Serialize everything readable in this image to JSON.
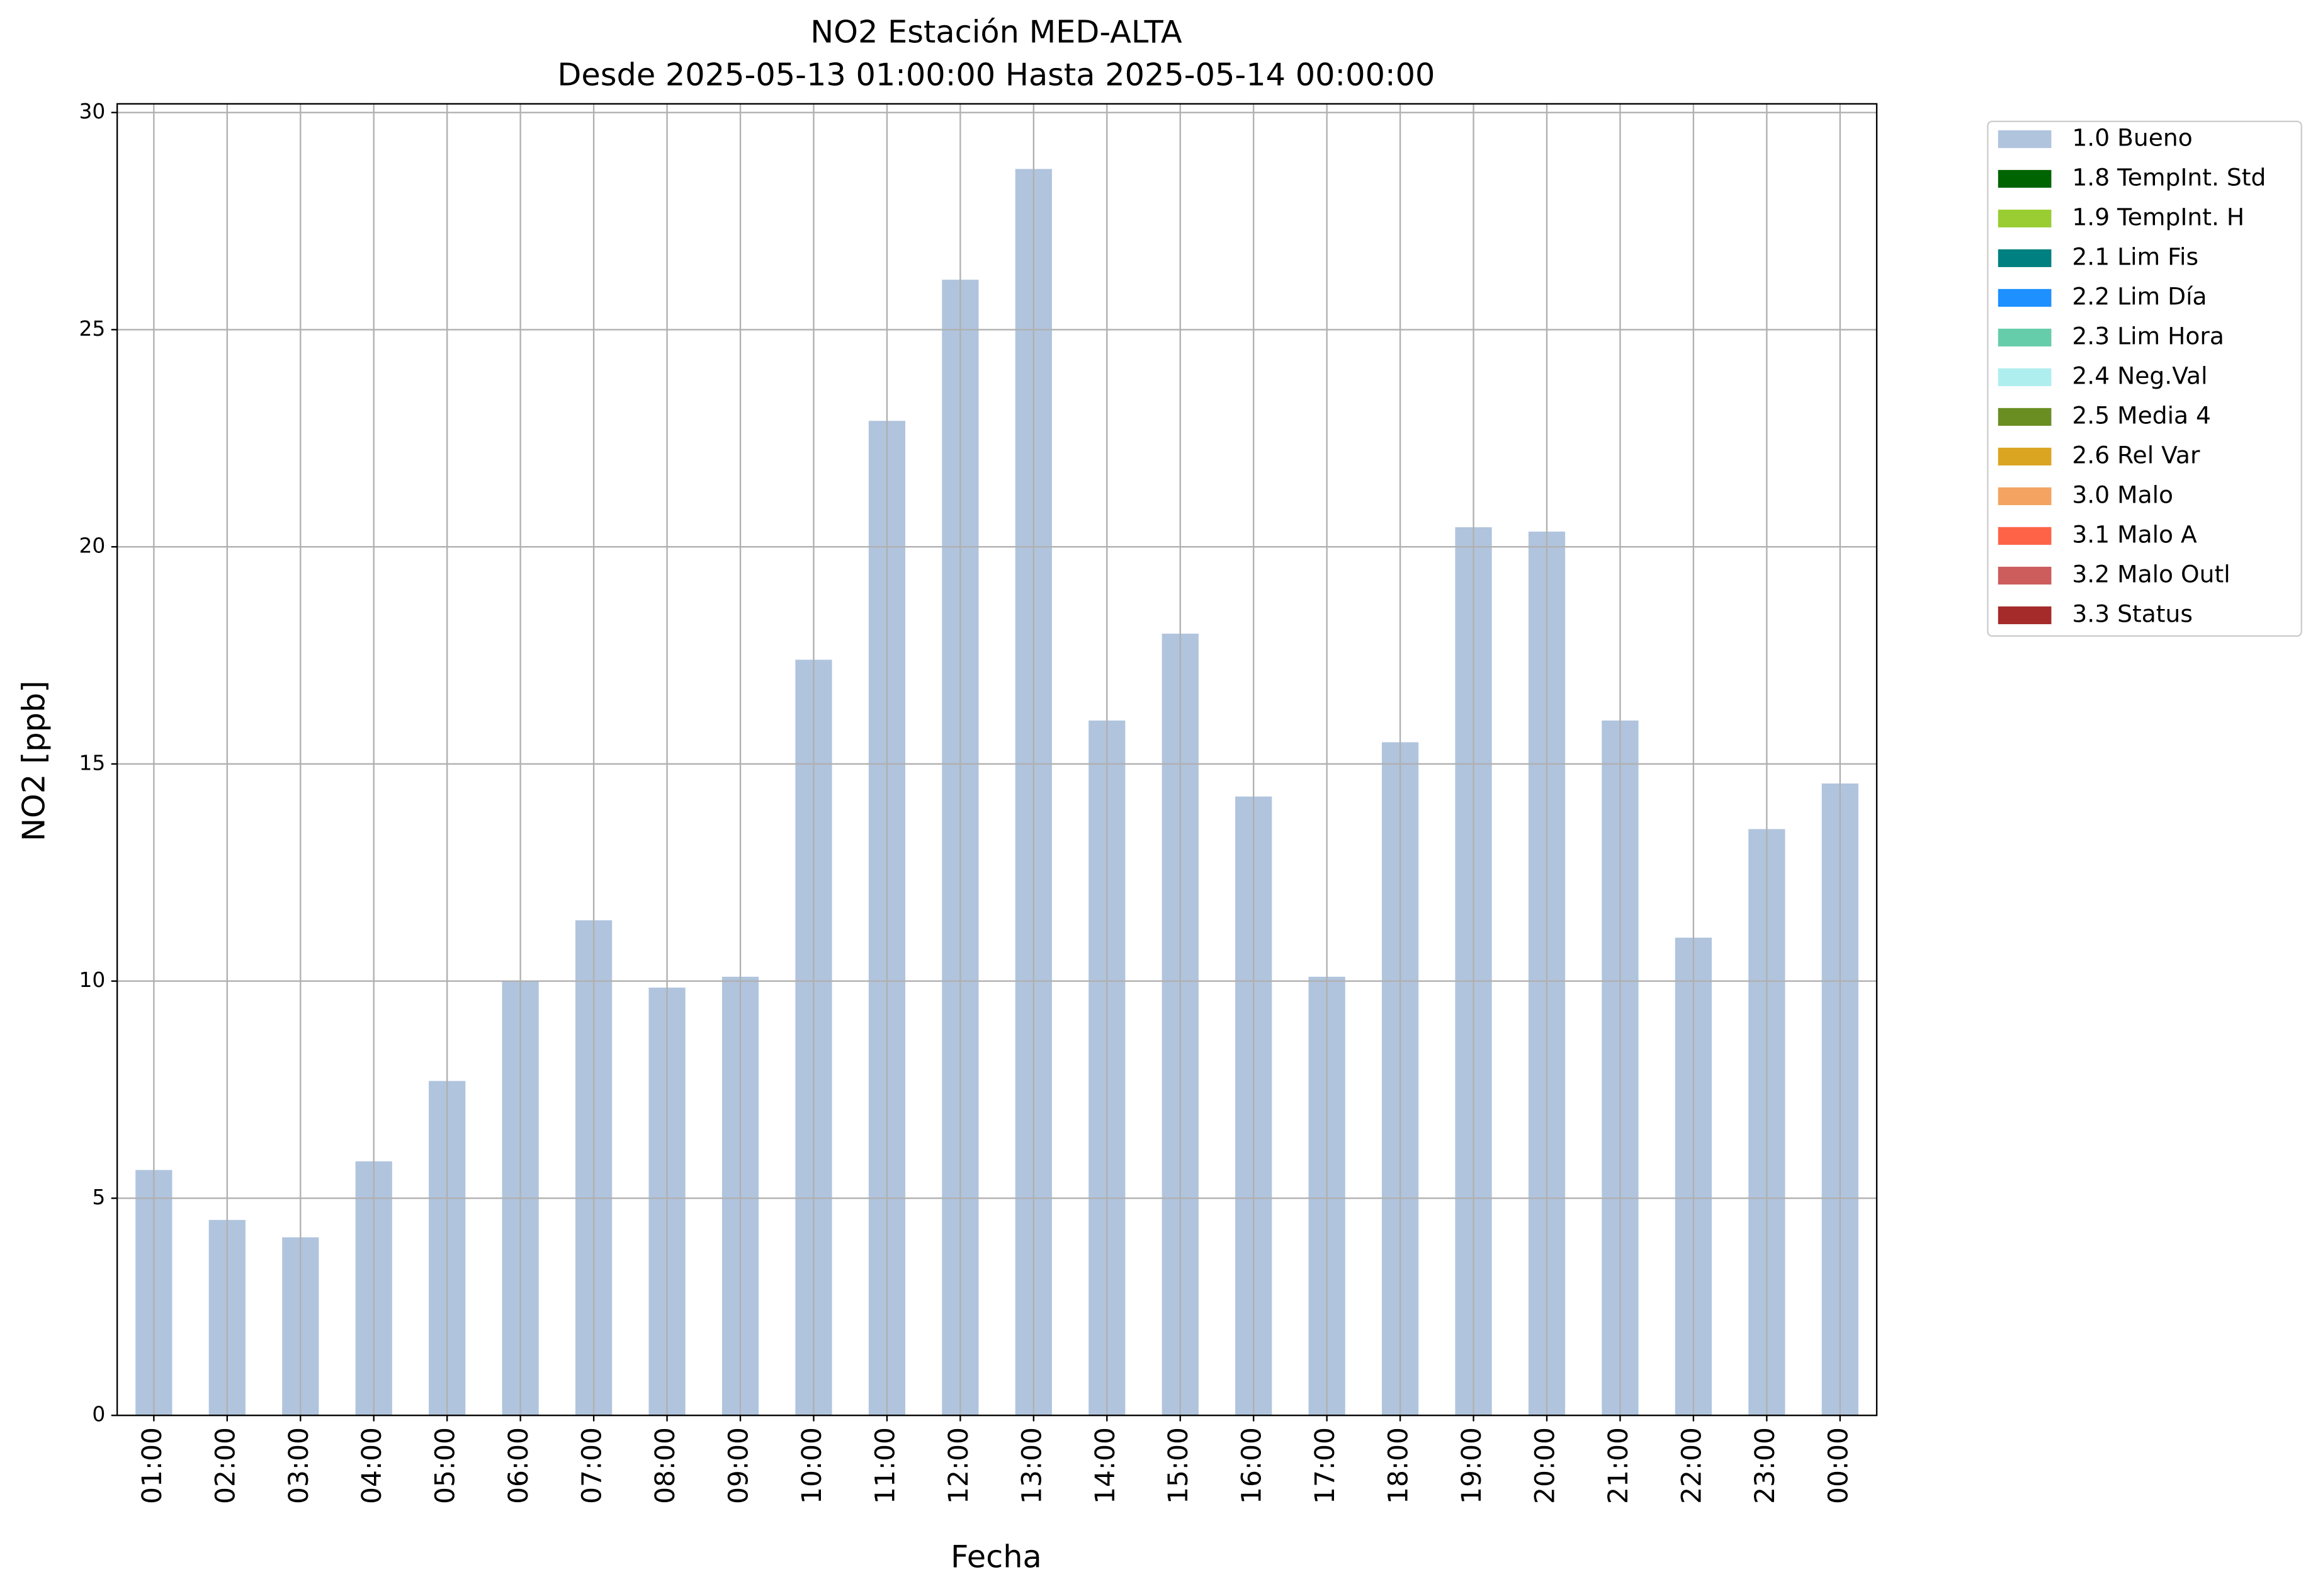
{
  "chart_data": {
    "type": "bar",
    "title": "NO2 Estación MED-ALTA",
    "subtitle": "Desde 2025-05-13 01:00:00 Hasta 2025-05-14 00:00:00",
    "x_label": "Fecha",
    "y_label": "NO2 [ppb]",
    "categories": [
      "01:00",
      "02:00",
      "03:00",
      "04:00",
      "05:00",
      "06:00",
      "07:00",
      "08:00",
      "09:00",
      "10:00",
      "11:00",
      "12:00",
      "13:00",
      "14:00",
      "15:00",
      "16:00",
      "17:00",
      "18:00",
      "19:00",
      "20:00",
      "21:00",
      "22:00",
      "23:00",
      "00:00"
    ],
    "series": [
      {
        "name": "1.0 Bueno",
        "color": "#b0c4de",
        "values": [
          5.65,
          4.5,
          4.1,
          5.85,
          7.7,
          10.0,
          11.4,
          9.85,
          10.1,
          17.4,
          22.9,
          26.15,
          28.7,
          16.0,
          18.0,
          14.25,
          10.1,
          15.5,
          20.45,
          20.35,
          16.0,
          11.0,
          13.5,
          14.55
        ]
      },
      {
        "name": "1.8 TempInt. Std",
        "color": "#006400"
      },
      {
        "name": "1.9 TempInt. H",
        "color": "#9acd32"
      },
      {
        "name": "2.1 Lim Fis",
        "color": "#008080"
      },
      {
        "name": "2.2 Lim Día",
        "color": "#1e90ff"
      },
      {
        "name": "2.3 Lim Hora",
        "color": "#66cdaa"
      },
      {
        "name": "2.4 Neg.Val",
        "color": "#afeeee"
      },
      {
        "name": "2.5 Media 4",
        "color": "#6b8e23"
      },
      {
        "name": "2.6 Rel Var",
        "color": "#daa520"
      },
      {
        "name": "3.0 Malo",
        "color": "#f4a460"
      },
      {
        "name": "3.1 Malo A",
        "color": "#ff6347"
      },
      {
        "name": "3.2 Malo Outl",
        "color": "#cd5c5c"
      },
      {
        "name": "3.3 Status",
        "color": "#a52a2a"
      }
    ],
    "ylim": [
      0,
      30.2
    ],
    "yticks": [
      0,
      5,
      10,
      15,
      20,
      25,
      30
    ],
    "grid": true,
    "legend": "outside-upper-right"
  }
}
